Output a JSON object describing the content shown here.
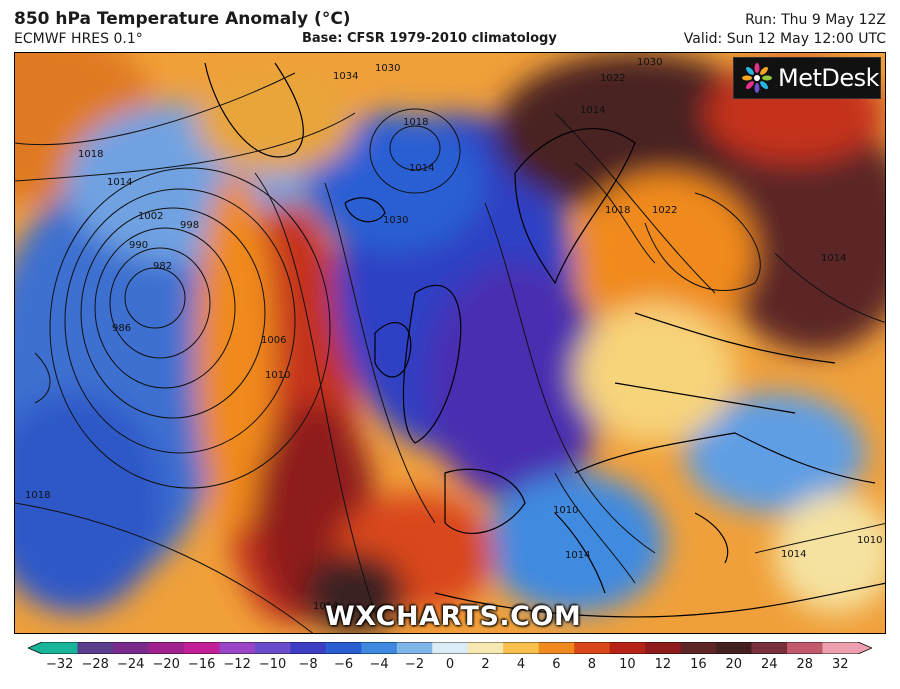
{
  "header": {
    "title": "850 hPa Temperature Anomaly (°C)",
    "model": "ECMWF HRES 0.1°",
    "base": "Base: CFSR 1979-2010 climatology",
    "run": "Run: Thu 9 May 12Z",
    "valid": "Valid: Sun 12 May 12:00 UTC"
  },
  "logo": {
    "text": "MetDesk",
    "icon": "metdesk-star-icon"
  },
  "watermark": "WXCHARTS.COM",
  "isobars": {
    "labels": [
      "1034",
      "1030",
      "1022",
      "1030",
      "1018",
      "1014",
      "1018",
      "1014",
      "1002",
      "998",
      "990",
      "982",
      "986",
      "1006",
      "1010",
      "1030",
      "1014",
      "1018",
      "1022",
      "1014",
      "1010",
      "1014",
      "1014",
      "1010",
      "1018",
      "1014"
    ]
  },
  "colorbar": {
    "unit": "°C",
    "ticks": [
      "−32",
      "−28",
      "−24",
      "−20",
      "−16",
      "−12",
      "−10",
      "−8",
      "−6",
      "−4",
      "−2",
      "0",
      "2",
      "4",
      "6",
      "8",
      "10",
      "12",
      "16",
      "20",
      "24",
      "28",
      "32"
    ],
    "colors": [
      "#19b39a",
      "#5a3d8c",
      "#7a2a8a",
      "#a0228e",
      "#c41f9a",
      "#9a45c7",
      "#6b4ccc",
      "#3d3ec4",
      "#2a5fd4",
      "#3f8ae0",
      "#7fb6ea",
      "#dcedf6",
      "#f5e8b0",
      "#f7c04d",
      "#f08a1e",
      "#d9471a",
      "#b82317",
      "#8f1c1c",
      "#5c2626",
      "#452020",
      "#7a2f3c",
      "#c25a6e",
      "#eea0b0"
    ]
  }
}
